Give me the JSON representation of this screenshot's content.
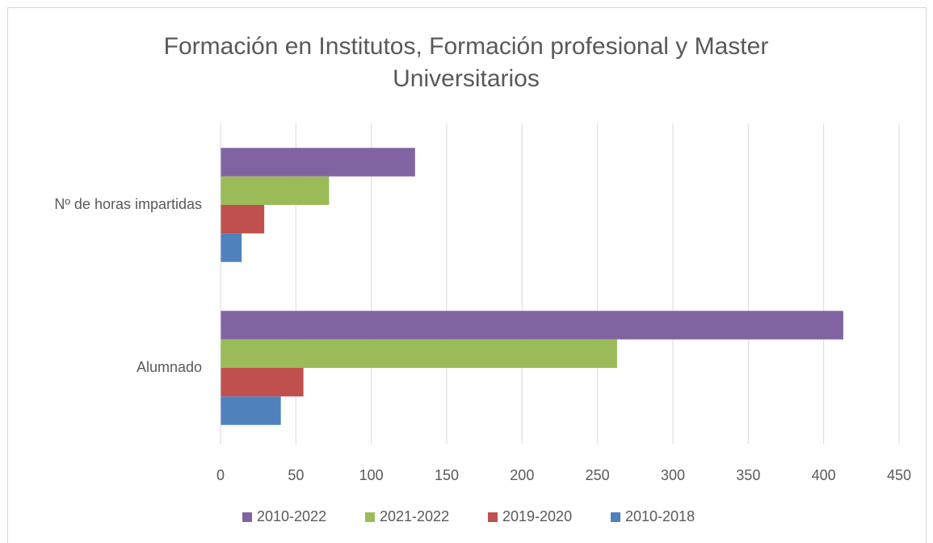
{
  "chart_data": {
    "type": "bar",
    "orientation": "horizontal",
    "title": "Formación en Institutos, Formación profesional y Master Universitarios",
    "categories": [
      "Alumnado",
      "Nº de horas impartidas"
    ],
    "series": [
      {
        "name": "2010-2022",
        "color": "#8064a2",
        "values": [
          413,
          129
        ]
      },
      {
        "name": "2021-2022",
        "color": "#9bbb59",
        "values": [
          263,
          72
        ]
      },
      {
        "name": "2019-2020",
        "color": "#c0504d",
        "values": [
          55,
          29
        ]
      },
      {
        "name": "2010-2018",
        "color": "#4f81bd",
        "values": [
          40,
          14
        ]
      }
    ],
    "xlim": [
      0,
      450
    ],
    "xticks": [
      0,
      50,
      100,
      150,
      200,
      250,
      300,
      350,
      400,
      450
    ],
    "grid": true,
    "legend": "bottom"
  }
}
